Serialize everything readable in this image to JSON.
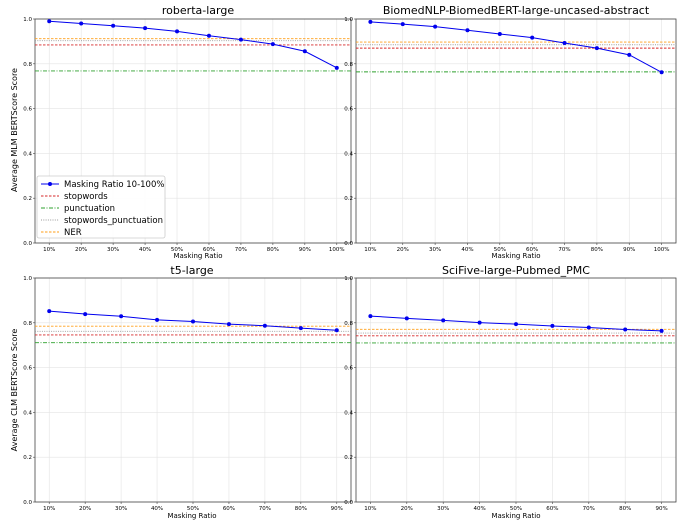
{
  "figure": {
    "legend_entries": [
      "Masking Ratio 10-100%",
      "stopwords",
      "punctuation",
      "stopwords_punctuation",
      "NER"
    ],
    "row_ylabels": [
      "Average MLM BERTScore Score",
      "Average CLM BERTScore Score"
    ]
  },
  "chart_data": [
    {
      "type": "line",
      "title": "roberta-large",
      "xlabel": "Masking Ratio",
      "ylabel": "Average MLM BERTScore Score",
      "x": [
        "10%",
        "20%",
        "30%",
        "40%",
        "50%",
        "60%",
        "70%",
        "80%",
        "90%",
        "100%"
      ],
      "series": [
        {
          "name": "Masking Ratio 10-100%",
          "values": [
            0.99,
            0.98,
            0.97,
            0.959,
            0.945,
            0.925,
            0.908,
            0.888,
            0.856,
            0.782
          ]
        }
      ],
      "hlines": [
        {
          "name": "stopwords",
          "value": 0.884
        },
        {
          "name": "punctuation",
          "value": 0.768
        },
        {
          "name": "stopwords_punctuation",
          "value": 0.903
        },
        {
          "name": "NER",
          "value": 0.912
        }
      ],
      "ylim": [
        0,
        1.0
      ],
      "yticks": [
        "0.0",
        "0.2",
        "0.4",
        "0.6",
        "0.8",
        "1.0"
      ],
      "grid": true,
      "legend": "lower-left"
    },
    {
      "type": "line",
      "title": "BiomedNLP-BiomedBERT-large-uncased-abstract",
      "xlabel": "Masking Ratio",
      "ylabel": "",
      "x": [
        "10%",
        "20%",
        "30%",
        "40%",
        "50%",
        "60%",
        "70%",
        "80%",
        "90%",
        "100%"
      ],
      "series": [
        {
          "name": "Masking Ratio 10-100%",
          "values": [
            0.987,
            0.977,
            0.966,
            0.95,
            0.933,
            0.917,
            0.893,
            0.87,
            0.84,
            0.762
          ]
        }
      ],
      "hlines": [
        {
          "name": "stopwords",
          "value": 0.87
        },
        {
          "name": "punctuation",
          "value": 0.764
        },
        {
          "name": "stopwords_punctuation",
          "value": 0.885
        },
        {
          "name": "NER",
          "value": 0.897
        }
      ],
      "ylim": [
        0,
        1.0
      ],
      "yticks": [
        "0.0",
        "0.2",
        "0.4",
        "0.6",
        "0.8",
        "1.0"
      ],
      "grid": true
    },
    {
      "type": "line",
      "title": "t5-large",
      "xlabel": "Masking Ratio",
      "ylabel": "Average CLM BERTScore Score",
      "x": [
        "10%",
        "20%",
        "30%",
        "40%",
        "50%",
        "60%",
        "70%",
        "80%",
        "90%"
      ],
      "series": [
        {
          "name": "Masking Ratio 10-100%",
          "values": [
            0.852,
            0.839,
            0.829,
            0.813,
            0.806,
            0.794,
            0.787,
            0.776,
            0.767
          ]
        }
      ],
      "hlines": [
        {
          "name": "stopwords",
          "value": 0.746
        },
        {
          "name": "punctuation",
          "value": 0.711
        },
        {
          "name": "stopwords_punctuation",
          "value": 0.762
        },
        {
          "name": "NER",
          "value": 0.785
        }
      ],
      "ylim": [
        0,
        1.0
      ],
      "yticks": [
        "0.0",
        "0.2",
        "0.4",
        "0.6",
        "0.8",
        "1.0"
      ],
      "grid": true
    },
    {
      "type": "line",
      "title": "SciFive-large-Pubmed_PMC",
      "xlabel": "Masking Ratio",
      "ylabel": "",
      "x": [
        "10%",
        "20%",
        "30%",
        "40%",
        "50%",
        "60%",
        "70%",
        "80%",
        "90%"
      ],
      "series": [
        {
          "name": "Masking Ratio 10-100%",
          "values": [
            0.83,
            0.82,
            0.811,
            0.801,
            0.794,
            0.786,
            0.779,
            0.77,
            0.764
          ]
        }
      ],
      "hlines": [
        {
          "name": "stopwords",
          "value": 0.742
        },
        {
          "name": "punctuation",
          "value": 0.71
        },
        {
          "name": "stopwords_punctuation",
          "value": 0.754
        },
        {
          "name": "NER",
          "value": 0.771
        }
      ],
      "ylim": [
        0,
        1.0
      ],
      "yticks": [
        "0.0",
        "0.2",
        "0.4",
        "0.6",
        "0.8",
        "1.0"
      ],
      "grid": true
    }
  ],
  "colors": {
    "series": "#0000ee",
    "stopwords": "#d62728",
    "punctuation": "#2ca02c",
    "stopwords_punctuation": "#9a9a9a",
    "NER": "#ff9f1a",
    "grid": "#e3e3e3",
    "axis": "#444444"
  }
}
